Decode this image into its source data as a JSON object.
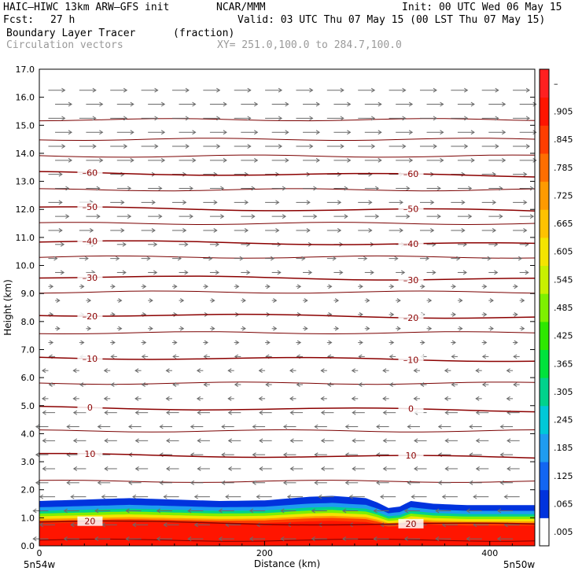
{
  "header": {
    "model": "HAIC–HIWC 13km ARW–GFS init",
    "org": "NCAR/MMM",
    "init": "Init: 00 UTC Wed 06 May 15",
    "fcst_label": "Fcst:",
    "fcst_value": "27 h",
    "valid": "Valid: 03 UTC Thu 07 May 15 (00 LST Thu 07 May 15)",
    "field": "Boundary Layer Tracer",
    "field_unit": "(fraction)",
    "overlay": "Circulation vectors",
    "xy": "XY= 251.0,100.0 to 284.7,100.0"
  },
  "chart_data": {
    "type": "heatmap",
    "xlabel": "Distance (km)",
    "ylabel": "Height (km)",
    "xlim": [
      0,
      440
    ],
    "ylim": [
      0,
      17
    ],
    "x_ticks": [
      0,
      200,
      400
    ],
    "y_ticks": [
      "0.0",
      "1.0",
      "2.0",
      "3.0",
      "4.0",
      "5.0",
      "6.0",
      "7.0",
      "8.0",
      "9.0",
      "10.0",
      "11.0",
      "12.0",
      "13.0",
      "14.0",
      "15.0",
      "16.0",
      "17.0"
    ],
    "x_left_label": "5n54w",
    "x_right_label": "5n50w",
    "colorbar": {
      "labels": [
        ".005",
        ".065",
        ".125",
        ".185",
        ".245",
        ".305",
        ".365",
        ".425",
        ".485",
        ".545",
        ".605",
        ".665",
        ".725",
        ".785",
        ".845",
        ".905",
        "–"
      ],
      "colors": [
        "#ffffff",
        "#0033dd",
        "#1266f2",
        "#1e9cf0",
        "#00c8d8",
        "#00d28c",
        "#00e23c",
        "#2ee800",
        "#7ef000",
        "#c8f000",
        "#f4e400",
        "#ffc200",
        "#ff9a00",
        "#ff6e00",
        "#ff3e00",
        "#ff1500",
        "#ff2020"
      ]
    },
    "temperature_contours": [
      {
        "value": 20,
        "height": 0.85,
        "label": "20"
      },
      {
        "value": 10,
        "height": 3.25,
        "label": "10"
      },
      {
        "value": 0,
        "height": 4.93,
        "label": "0"
      },
      {
        "value": -10,
        "height": 6.72,
        "label": "–10"
      },
      {
        "value": -20,
        "height": 8.25,
        "label": "–20"
      },
      {
        "value": -30,
        "height": 9.6,
        "label": "–30"
      },
      {
        "value": -40,
        "height": 10.85,
        "label": "–40"
      },
      {
        "value": -50,
        "height": 12.05,
        "label": "–50"
      },
      {
        "value": -60,
        "height": 13.3,
        "label": "–60"
      }
    ],
    "extra_contour_heights": [
      0.2,
      2.3,
      4.1,
      5.8,
      7.6,
      9.05,
      10.3,
      11.5,
      12.7,
      13.9,
      14.5,
      15.2
    ],
    "pbl_top_profile": {
      "x": [
        0,
        40,
        80,
        120,
        160,
        200,
        240,
        260,
        290,
        300,
        310,
        320,
        330,
        350,
        380,
        440
      ],
      "top": [
        1.6,
        1.65,
        1.7,
        1.65,
        1.6,
        1.62,
        1.75,
        1.78,
        1.7,
        1.55,
        1.35,
        1.4,
        1.6,
        1.5,
        1.45,
        1.45
      ]
    }
  }
}
